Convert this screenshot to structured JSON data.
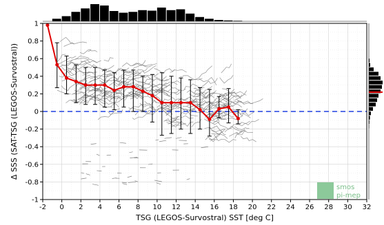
{
  "chart_data": {
    "type": "scatter",
    "title": "",
    "xlabel": "TSG (LEGOS-Survostral) SST [deg C]",
    "ylabel": "Δ SSS (SAT-TSG (LEGOS-Survostral))",
    "xlim": [
      -2,
      32
    ],
    "ylim": [
      -1,
      1
    ],
    "x_ticks": [
      "-2",
      "0",
      "2",
      "4",
      "6",
      "8",
      "10",
      "12",
      "14",
      "16",
      "18",
      "20",
      "22",
      "24",
      "26",
      "28",
      "30",
      "32"
    ],
    "y_ticks": [
      "-1",
      "-0.8",
      "-0.6",
      "-0.4",
      "-0.2",
      "0",
      "0.2",
      "0.4",
      "0.6",
      "0.8",
      "1"
    ],
    "grid": true,
    "reference_line": {
      "y": 0,
      "color": "#1f3fe0",
      "style": "dashed"
    },
    "scatter_color": "#808080",
    "median_color": "#e00000",
    "bins": {
      "x": [
        -1.5,
        -0.5,
        0.5,
        1.5,
        2.5,
        3.5,
        4.5,
        5.5,
        6.5,
        7.5,
        8.5,
        9.5,
        10.5,
        11.5,
        12.5,
        13.5,
        14.5,
        15.5,
        16.5,
        17.5,
        18.5
      ],
      "median": [
        0.98,
        0.53,
        0.38,
        0.34,
        0.3,
        0.3,
        0.3,
        0.24,
        0.28,
        0.28,
        0.23,
        0.18,
        0.1,
        0.1,
        0.1,
        0.1,
        0.02,
        -0.09,
        0.03,
        0.05,
        -0.08
      ],
      "low": [
        null,
        0.27,
        0.2,
        0.1,
        0.08,
        0.08,
        0.05,
        0.02,
        0.05,
        0.0,
        0.0,
        -0.12,
        -0.27,
        -0.25,
        -0.2,
        -0.25,
        -0.2,
        -0.28,
        -0.07,
        -0.13,
        -0.14
      ],
      "high": [
        null,
        0.78,
        0.63,
        0.53,
        0.5,
        0.5,
        0.47,
        0.44,
        0.47,
        0.47,
        0.4,
        0.42,
        0.44,
        0.4,
        0.38,
        0.36,
        0.27,
        0.25,
        0.17,
        0.26,
        0.02
      ]
    },
    "top_histogram": {
      "x": [
        -1,
        0,
        1,
        2,
        3,
        4,
        5,
        6,
        7,
        8,
        9,
        10,
        11,
        12,
        13,
        14,
        15,
        16,
        17,
        18
      ],
      "counts": [
        0.15,
        0.3,
        0.55,
        0.75,
        1.0,
        0.92,
        0.6,
        0.5,
        0.55,
        0.65,
        0.62,
        0.8,
        0.65,
        0.7,
        0.45,
        0.25,
        0.15,
        0.08,
        0.05,
        0.03
      ]
    },
    "right_histogram": {
      "y": [
        0.55,
        0.5,
        0.45,
        0.4,
        0.35,
        0.3,
        0.25,
        0.2,
        0.15,
        0.1,
        0.05,
        0.0,
        -0.05,
        -0.1,
        -0.15,
        -0.2
      ],
      "counts": [
        0.05,
        0.1,
        0.35,
        0.7,
        0.85,
        1.0,
        0.95,
        0.85,
        0.7,
        0.6,
        0.5,
        0.3,
        0.15,
        0.08,
        0.04,
        0.02
      ],
      "median": 0.22
    }
  },
  "logo": {
    "line1": "smos",
    "line2": "pi-mep"
  }
}
